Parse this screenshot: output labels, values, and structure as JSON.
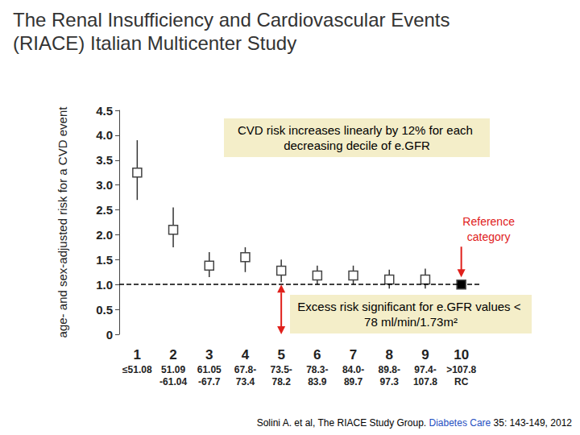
{
  "chart_data": {
    "type": "scatter",
    "title": "The Renal Insufficiency and Cardiovascular Events (RIACE) Italian Multicenter Study",
    "y_label": "age- and sex-adjusted risk for a CVD event",
    "categories": [
      "1\n≤51.08",
      "2\n51.09\n-61.04",
      "3\n61.05\n-67.7",
      "4\n67.8-\n73.4",
      "5\n73.5-\n78.2",
      "6\n78.3-\n83.9",
      "7\n84.0-\n89.7",
      "8\n89.8-\n97.3",
      "9\n97.4-\n107.8",
      "10\n>107.8\nRC"
    ],
    "values": [
      3.25,
      2.1,
      1.38,
      1.55,
      1.28,
      1.18,
      1.18,
      1.1,
      1.1,
      1.0
    ],
    "error_low": [
      2.7,
      1.75,
      1.15,
      1.25,
      1.05,
      1.0,
      1.0,
      0.92,
      0.92,
      null
    ],
    "error_high": [
      3.9,
      2.55,
      1.65,
      1.75,
      1.5,
      1.38,
      1.38,
      1.3,
      1.32,
      null
    ],
    "colors": [
      "#ffffff",
      "#ffffff",
      "#ffffff",
      "#ffffff",
      "#ffffff",
      "#ffffff",
      "#ffffff",
      "#ffffff",
      "#ffffff",
      "#000000"
    ],
    "marker": "square",
    "ylim": [
      0,
      4.5
    ],
    "yticks": [
      0,
      0.5,
      {
        "value": 1,
        "label": "1.0"
      },
      1.5,
      {
        "value": 2,
        "label": "2.0"
      },
      2.5,
      {
        "value": 3,
        "label": "3.0"
      },
      3.5,
      {
        "value": 4,
        "label": "4.0"
      },
      4.5
    ],
    "reference_line": 1,
    "grid": false,
    "annotations": {
      "trend": "CVD risk increases linearly by 12% for each decreasing decile of e.GFR",
      "reference": "Reference category",
      "excess": "Excess risk significant for e.GFR values < 78 ml/min/1.73m²"
    },
    "source": {
      "authors": "Solini A. et al, The RIACE Study Group. ",
      "journal": "Diabetes Care",
      "details": " 35: 143-149, 2012"
    }
  }
}
